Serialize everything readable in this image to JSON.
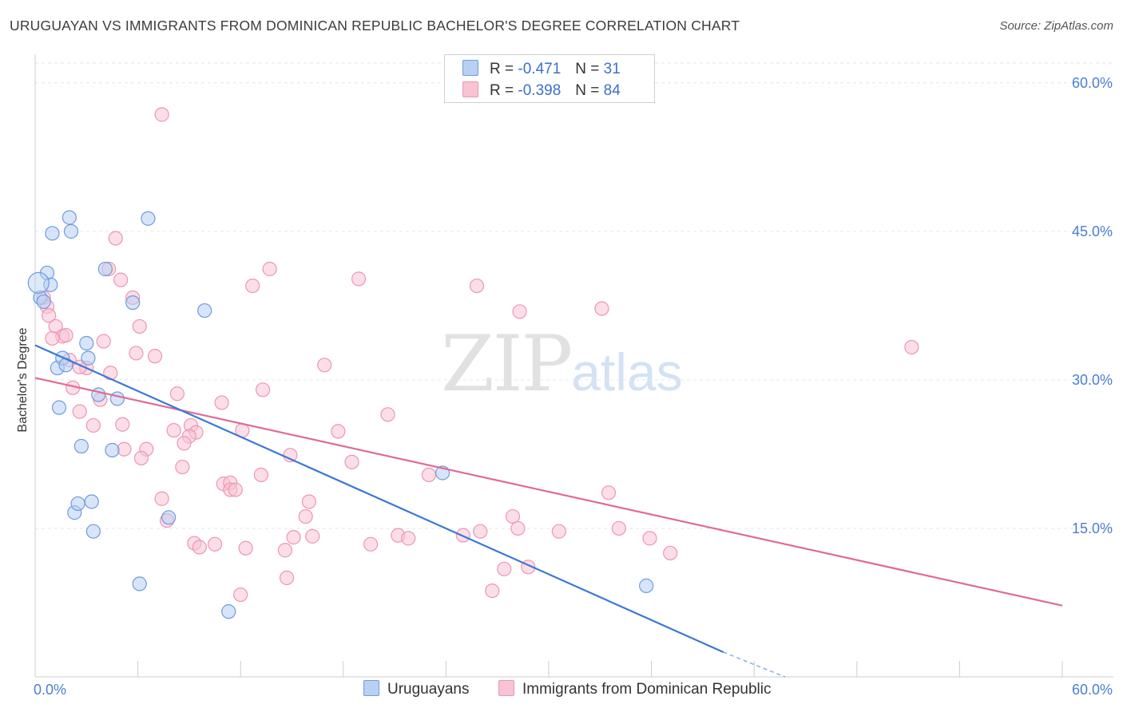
{
  "title": "URUGUAYAN VS IMMIGRANTS FROM DOMINICAN REPUBLIC BACHELOR'S DEGREE CORRELATION CHART",
  "source": "Source: ZipAtlas.com",
  "watermark": {
    "zip": "ZIP",
    "atlas": "atlas"
  },
  "legend": {
    "r_label": "R =",
    "n_label": "N =",
    "rows": [
      {
        "r": "-0.471",
        "n": "31"
      },
      {
        "r": "-0.398",
        "n": "84"
      }
    ]
  },
  "colors": {
    "blue_fill": "#b8d0f2",
    "blue_stroke": "#6d9be0",
    "blue_line": "#3a78d4",
    "pink_fill": "#f8c3d3",
    "pink_stroke": "#ee96b2",
    "pink_line": "#e06a98",
    "grid": "#e6e6e6",
    "axis": "#cccccc"
  },
  "chart_data": {
    "type": "scatter",
    "ylabel": "Bachelor's Degree",
    "xlim": [
      0,
      60
    ],
    "ylim": [
      0,
      62
    ],
    "x_tick_labels": [
      "0.0%",
      "60.0%"
    ],
    "y_ticks": [
      15,
      30,
      45,
      60
    ],
    "y_tick_labels": [
      "15.0%",
      "30.0%",
      "45.0%",
      "60.0%"
    ],
    "grid": "horizontal dashed",
    "series": [
      {
        "name": "Uruguayans",
        "points": [
          [
            0.3,
            38.3
          ],
          [
            0.5,
            37.9
          ],
          [
            0.7,
            40.8
          ],
          [
            0.9,
            39.6
          ],
          [
            1.0,
            44.8
          ],
          [
            1.3,
            31.2
          ],
          [
            1.4,
            27.2
          ],
          [
            1.6,
            32.2
          ],
          [
            1.8,
            31.5
          ],
          [
            2.0,
            46.4
          ],
          [
            2.1,
            45.0
          ],
          [
            2.3,
            16.6
          ],
          [
            2.5,
            17.5
          ],
          [
            2.7,
            23.3
          ],
          [
            3.0,
            33.7
          ],
          [
            3.1,
            32.2
          ],
          [
            3.3,
            17.7
          ],
          [
            3.4,
            14.7
          ],
          [
            3.7,
            28.5
          ],
          [
            4.1,
            41.2
          ],
          [
            4.5,
            22.9
          ],
          [
            4.8,
            28.1
          ],
          [
            5.7,
            37.8
          ],
          [
            6.1,
            9.4
          ],
          [
            6.6,
            46.3
          ],
          [
            7.8,
            16.1
          ],
          [
            9.9,
            37.0
          ],
          [
            11.3,
            6.6
          ],
          [
            23.8,
            20.6
          ],
          [
            35.7,
            9.2
          ],
          [
            0.2,
            39.8
          ]
        ],
        "trend": {
          "x": [
            0.0,
            40.2
          ],
          "y": [
            33.5,
            2.5
          ],
          "dashed_to": [
            43.8,
            0.0
          ]
        }
      },
      {
        "name": "Immigrants from Dominican Republic",
        "points": [
          [
            7.4,
            56.8
          ],
          [
            4.7,
            44.3
          ],
          [
            4.3,
            41.2
          ],
          [
            5.0,
            40.1
          ],
          [
            13.7,
            41.2
          ],
          [
            18.9,
            40.2
          ],
          [
            25.8,
            39.5
          ],
          [
            12.7,
            39.5
          ],
          [
            5.7,
            38.3
          ],
          [
            0.5,
            38.3
          ],
          [
            0.7,
            37.4
          ],
          [
            0.8,
            36.5
          ],
          [
            28.3,
            36.9
          ],
          [
            33.1,
            37.2
          ],
          [
            6.1,
            35.4
          ],
          [
            1.2,
            35.4
          ],
          [
            1.6,
            34.4
          ],
          [
            1.8,
            34.5
          ],
          [
            1.0,
            34.2
          ],
          [
            4.0,
            33.9
          ],
          [
            51.2,
            33.3
          ],
          [
            5.9,
            32.7
          ],
          [
            7.0,
            32.4
          ],
          [
            2.0,
            32.0
          ],
          [
            16.9,
            31.5
          ],
          [
            3.0,
            31.2
          ],
          [
            2.6,
            31.3
          ],
          [
            4.4,
            30.7
          ],
          [
            2.2,
            29.2
          ],
          [
            13.3,
            29.0
          ],
          [
            8.3,
            28.6
          ],
          [
            3.8,
            28.0
          ],
          [
            10.9,
            27.7
          ],
          [
            2.6,
            26.8
          ],
          [
            20.6,
            26.5
          ],
          [
            3.4,
            25.4
          ],
          [
            5.1,
            25.5
          ],
          [
            9.1,
            25.4
          ],
          [
            8.1,
            24.9
          ],
          [
            12.1,
            24.9
          ],
          [
            17.7,
            24.8
          ],
          [
            9.4,
            24.7
          ],
          [
            9.0,
            24.3
          ],
          [
            8.7,
            23.6
          ],
          [
            6.5,
            23.0
          ],
          [
            5.2,
            23.0
          ],
          [
            6.2,
            22.1
          ],
          [
            14.9,
            22.4
          ],
          [
            18.5,
            21.7
          ],
          [
            8.6,
            21.2
          ],
          [
            13.2,
            20.4
          ],
          [
            23.0,
            20.4
          ],
          [
            11.0,
            19.5
          ],
          [
            11.4,
            19.6
          ],
          [
            11.4,
            18.9
          ],
          [
            11.7,
            18.9
          ],
          [
            7.4,
            18.0
          ],
          [
            16.0,
            17.7
          ],
          [
            33.5,
            18.6
          ],
          [
            7.7,
            15.8
          ],
          [
            15.8,
            16.2
          ],
          [
            27.9,
            16.2
          ],
          [
            15.1,
            14.1
          ],
          [
            16.2,
            14.2
          ],
          [
            21.2,
            14.3
          ],
          [
            21.8,
            14.0
          ],
          [
            25.0,
            14.3
          ],
          [
            26.0,
            14.7
          ],
          [
            28.2,
            15.0
          ],
          [
            30.6,
            14.7
          ],
          [
            34.1,
            15.0
          ],
          [
            35.9,
            14.0
          ],
          [
            37.1,
            12.5
          ],
          [
            9.3,
            13.5
          ],
          [
            9.6,
            13.1
          ],
          [
            10.5,
            13.4
          ],
          [
            12.3,
            13.0
          ],
          [
            14.6,
            12.8
          ],
          [
            19.6,
            13.4
          ],
          [
            26.7,
            8.7
          ],
          [
            27.4,
            10.9
          ],
          [
            28.8,
            11.1
          ],
          [
            14.7,
            10.0
          ],
          [
            12.0,
            8.3
          ]
        ],
        "trend": {
          "x": [
            0.0,
            60.0
          ],
          "y": [
            30.2,
            7.2
          ]
        }
      }
    ]
  }
}
